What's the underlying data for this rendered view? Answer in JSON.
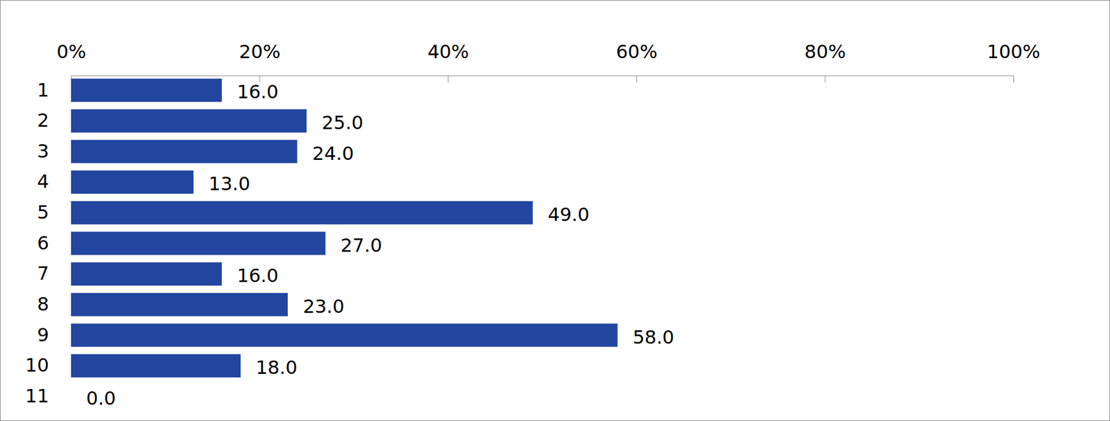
{
  "chart_data": {
    "type": "bar",
    "orientation": "horizontal",
    "categories": [
      "1",
      "2",
      "3",
      "4",
      "5",
      "6",
      "7",
      "8",
      "9",
      "10",
      "11"
    ],
    "values": [
      16,
      25,
      24,
      13,
      49,
      27,
      16,
      23,
      58,
      18,
      0
    ],
    "value_labels": [
      "16.0",
      "25.0",
      "24.0",
      "13.0",
      "49.0",
      "27.0",
      "16.0",
      "23.0",
      "58.0",
      "18.0",
      "0.0"
    ],
    "color": "#2246a0",
    "xlim": [
      0,
      100
    ],
    "xticks": [
      {
        "value": 0,
        "label": "0%"
      },
      {
        "value": 20,
        "label": "20%"
      },
      {
        "value": 40,
        "label": "40%"
      },
      {
        "value": 60,
        "label": "60%"
      },
      {
        "value": 80,
        "label": "80%"
      },
      {
        "value": 100,
        "label": "100%"
      }
    ],
    "data_labels": true,
    "grid": false
  }
}
